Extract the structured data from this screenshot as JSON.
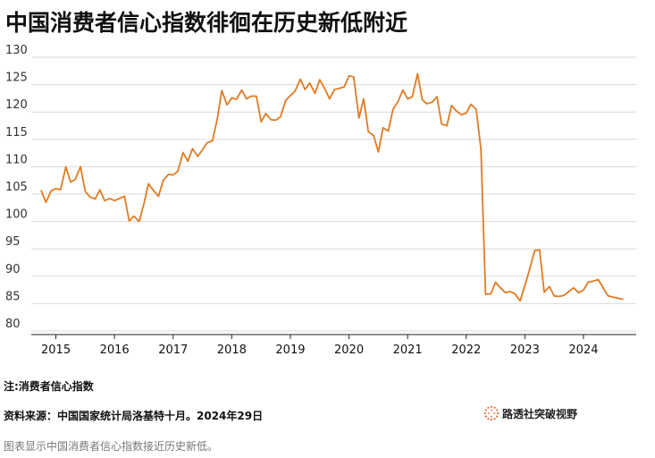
{
  "title": "中国消费者信心指数徘徊在历史新低附近",
  "note": "注:消费者信心指数",
  "source": "资料来源：中国国家统计局洛基特十月。2024年29日",
  "caption": "图表显示中国消费者信心指数接近历史新低。",
  "logo": {
    "text": "路透社突破视野",
    "icon": "reuters-dot-ring-logo"
  },
  "chart_data": {
    "type": "line",
    "title": "中国消费者信心指数徘徊在历史新低附近",
    "xlabel": "",
    "ylabel": "",
    "ylim": [
      80,
      130
    ],
    "xlim": [
      2014.58,
      2024.9
    ],
    "y_ticks": [
      80,
      85,
      90,
      95,
      100,
      105,
      110,
      115,
      120,
      125,
      130
    ],
    "x_ticks": [
      2015,
      2016,
      2017,
      2018,
      2019,
      2020,
      2021,
      2022,
      2023,
      2024
    ],
    "grid": true,
    "line_color": "#e07b24",
    "series": [
      {
        "x": [
          2014.75,
          2014.83,
          2014.92,
          2015.0,
          2015.08,
          2015.17,
          2015.25,
          2015.33,
          2015.42,
          2015.5,
          2015.58,
          2015.67,
          2015.75,
          2015.83,
          2015.92,
          2016.0,
          2016.08,
          2016.17,
          2016.25,
          2016.33,
          2016.42,
          2016.5,
          2016.58,
          2016.67,
          2016.75,
          2016.83,
          2016.92,
          2017.0,
          2017.08,
          2017.17,
          2017.25,
          2017.33,
          2017.42,
          2017.5,
          2017.58,
          2017.67,
          2017.75,
          2017.83,
          2017.92,
          2018.0,
          2018.08,
          2018.17,
          2018.25,
          2018.33,
          2018.42,
          2018.5,
          2018.58,
          2018.67,
          2018.75,
          2018.83,
          2018.92,
          2019.0,
          2019.08,
          2019.17,
          2019.25,
          2019.33,
          2019.42,
          2019.5,
          2019.58,
          2019.67,
          2019.75,
          2019.83,
          2019.92,
          2020.0,
          2020.08,
          2020.17,
          2020.25,
          2020.33,
          2020.42,
          2020.5,
          2020.58,
          2020.67,
          2020.75,
          2020.83,
          2020.92,
          2021.0,
          2021.08,
          2021.17,
          2021.25,
          2021.33,
          2021.42,
          2021.5,
          2021.58,
          2021.67,
          2021.75,
          2021.83,
          2021.92,
          2022.0,
          2022.08,
          2022.17,
          2022.25,
          2022.33,
          2022.42,
          2022.5,
          2022.58,
          2022.67,
          2022.75,
          2022.83,
          2022.92,
          2023.0,
          2023.08,
          2023.17,
          2023.25,
          2023.33,
          2023.42,
          2023.5,
          2023.58,
          2023.67,
          2023.75,
          2023.83,
          2023.92,
          2024.0,
          2024.08,
          2024.17,
          2024.25,
          2024.33,
          2024.42,
          2024.5,
          2024.58,
          2024.67
        ],
        "y": [
          105.6,
          103.5,
          105.6,
          106.0,
          105.8,
          110.0,
          107.2,
          107.7,
          110.0,
          105.5,
          104.5,
          104.1,
          105.8,
          103.8,
          104.2,
          103.8,
          104.2,
          104.6,
          100.1,
          101.0,
          100.0,
          103.2,
          106.9,
          105.6,
          104.6,
          107.5,
          108.6,
          108.5,
          109.2,
          112.6,
          111.0,
          113.3,
          111.9,
          113.1,
          114.4,
          114.7,
          118.6,
          123.9,
          121.3,
          122.6,
          122.3,
          124.0,
          122.4,
          122.9,
          122.9,
          118.2,
          119.7,
          118.6,
          118.5,
          119.1,
          122.1,
          123.0,
          123.8,
          126.0,
          124.1,
          125.3,
          123.4,
          125.9,
          124.4,
          122.4,
          124.1,
          124.3,
          124.6,
          126.6,
          126.4,
          118.9,
          122.4,
          116.4,
          115.7,
          112.7,
          117.1,
          116.5,
          120.5,
          121.8,
          124.0,
          122.4,
          122.8,
          127.0,
          122.2,
          121.5,
          121.8,
          122.8,
          117.8,
          117.5,
          121.2,
          120.2,
          119.5,
          119.8,
          121.4,
          120.5,
          113.2,
          86.7,
          86.8,
          88.9,
          87.9,
          87.0,
          87.2,
          86.8,
          85.5,
          88.3,
          91.2,
          94.7,
          94.8,
          87.1,
          88.1,
          86.4,
          86.3,
          86.5,
          87.2,
          87.9,
          87.0,
          87.5,
          88.9,
          89.1,
          89.4,
          88.0,
          86.4,
          86.2,
          86.0,
          85.8
        ]
      }
    ]
  }
}
